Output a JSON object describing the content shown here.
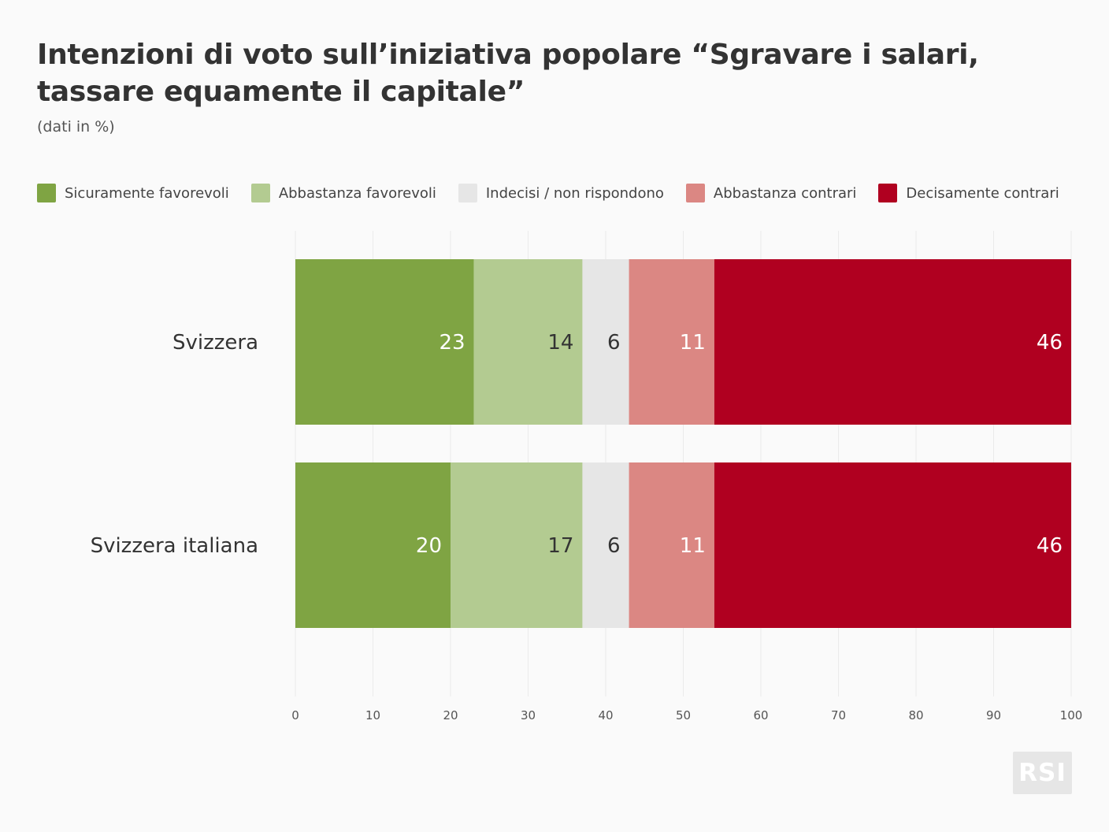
{
  "title": "Intenzioni di voto sull’iniziativa popolare “Sgravare i salari, tassare equamente il capitale”",
  "subtitle": "(dati in %)",
  "logo_text": "RSI",
  "chart_data": {
    "type": "bar",
    "orientation": "horizontal",
    "stacked": true,
    "categories": [
      "Svizzera",
      "Svizzera italiana"
    ],
    "series": [
      {
        "name": "Sicuramente favorevoli",
        "values": [
          23,
          20
        ],
        "color": "#7fa443",
        "label_color": "#ffffff"
      },
      {
        "name": "Abbastanza favorevoli",
        "values": [
          14,
          17
        ],
        "color": "#b3cb91",
        "label_color": "#333333"
      },
      {
        "name": "Indecisi / non rispondono",
        "values": [
          6,
          6
        ],
        "color": "#e6e6e6",
        "label_color": "#333333"
      },
      {
        "name": "Abbastanza contrari",
        "values": [
          11,
          11
        ],
        "color": "#db8783",
        "label_color": "#ffffff"
      },
      {
        "name": "Decisamente contrari",
        "values": [
          46,
          46
        ],
        "color": "#b00020",
        "label_color": "#ffffff"
      }
    ],
    "xlim": [
      0,
      100
    ],
    "xticks": [
      0,
      10,
      20,
      30,
      40,
      50,
      60,
      70,
      80,
      90,
      100
    ],
    "grid": true,
    "legend_position": "top"
  }
}
